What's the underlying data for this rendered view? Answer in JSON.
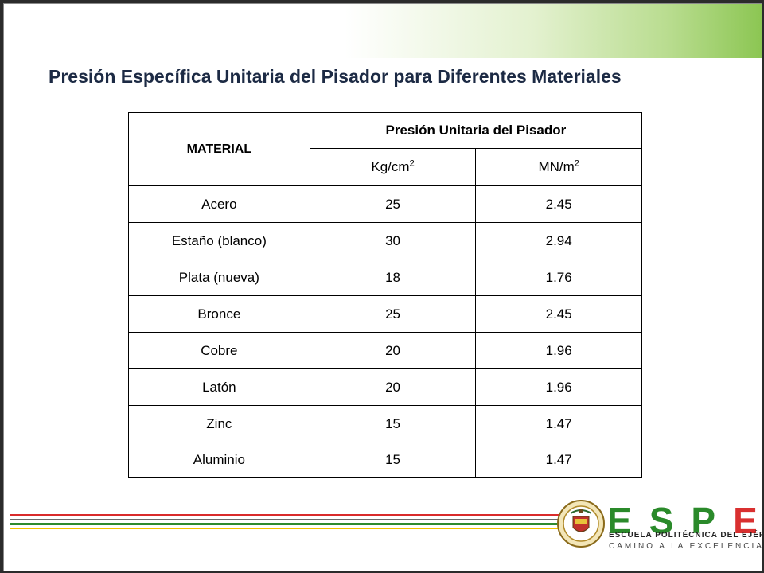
{
  "title": "Presión Específica Unitaria del Pisador para Diferentes Materiales",
  "table": {
    "col_material": "MATERIAL",
    "col_group": "Presión Unitaria del Pisador",
    "unit1_base": "Kg/cm",
    "unit1_exp": "2",
    "unit2_base": "MN/m",
    "unit2_exp": "2",
    "rows": [
      {
        "material": "Acero",
        "kg": "25",
        "mn": "2.45"
      },
      {
        "material": "Estaño (blanco)",
        "kg": "30",
        "mn": "2.94"
      },
      {
        "material": "Plata (nueva)",
        "kg": "18",
        "mn": "1.76"
      },
      {
        "material": "Bronce",
        "kg": "25",
        "mn": "2.45"
      },
      {
        "material": "Cobre",
        "kg": "20",
        "mn": "1.96"
      },
      {
        "material": "Latón",
        "kg": "20",
        "mn": "1.96"
      },
      {
        "material": "Zinc",
        "kg": "15",
        "mn": "1.47"
      },
      {
        "material": "Aluminio",
        "kg": "15",
        "mn": "1.47"
      }
    ]
  },
  "logo": {
    "letters": [
      "E",
      "S",
      "P",
      "E"
    ],
    "line1": "ESCUELA POLITÉCNICA DEL EJÉRCITO",
    "line2": "CAMINO A LA EXCELENCIA",
    "seal_icon": "crest-icon"
  },
  "colors": {
    "title": "#1c2a44",
    "brand_green": "#2a8a2a",
    "brand_red": "#d93030"
  }
}
